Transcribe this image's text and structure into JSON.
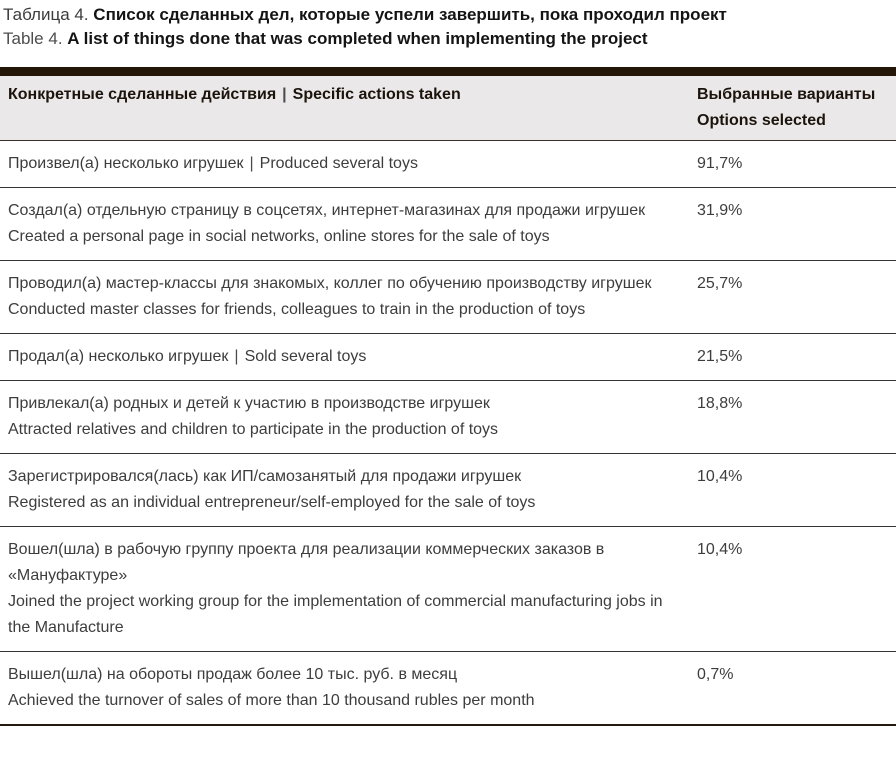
{
  "title": {
    "ru_label": "Таблица 4.",
    "ru_text": "Список сделанных дел, которые успели завершить, пока проходил проект",
    "en_label": "Table 4.",
    "en_text": "A list of things done that was completed when implementing the project"
  },
  "table": {
    "separator": "|",
    "header": {
      "col1_ru": "Конкретные сделанные действия",
      "col1_en": "Specific actions taken",
      "col2_line1": "Выбранные варианты",
      "col2_line2": "Options selected"
    },
    "rows": [
      {
        "ru": "Произвел(а) несколько игрушек",
        "en": "Produced several toys",
        "inline": true,
        "value": "91,7%"
      },
      {
        "ru": "Создал(а) отдельную страницу в соцсетях, интернет-магазинах для продажи игрушек",
        "en": "Created a personal page in social networks, online stores for the sale of toys",
        "inline": false,
        "value": "31,9%"
      },
      {
        "ru": "Проводил(а) мастер-классы для знакомых, коллег по обучению производству игрушек",
        "en": "Conducted master classes for friends, colleagues to train in the production of toys",
        "inline": false,
        "value": "25,7%"
      },
      {
        "ru": "Продал(а) несколько игрушек",
        "en": "Sold several toys",
        "inline": true,
        "value": "21,5%"
      },
      {
        "ru": "Привлекал(а) родных и детей к участию в производстве игрушек",
        "en": "Attracted relatives and children to participate in the production of toys",
        "inline": false,
        "value": "18,8%"
      },
      {
        "ru": "Зарегистрировался(лась) как ИП/самозанятый для продажи игрушек",
        "en": "Registered as an individual entrepreneur/self-employed for the sale of toys",
        "inline": false,
        "value": "10,4%"
      },
      {
        "ru": "Вошел(шла) в рабочую группу проекта для реализации коммерческих заказов в «Мануфактуре»",
        "en": "Joined the project working group for the implementation of commercial manufacturing jobs in the Manufacture",
        "inline": false,
        "value": "10,4%"
      },
      {
        "ru": "Вышел(шла) на обороты продаж более 10 тыс. руб. в месяц",
        "en": "Achieved the turnover of sales of more than 10 thousand rubles per month",
        "inline": false,
        "value": "0,7%"
      }
    ]
  },
  "colors": {
    "accent_bar": "#231508",
    "header_bg": "#eae8e8",
    "rule": "#343434",
    "body_text": "#3d3d3d",
    "title_text": "#141414"
  }
}
